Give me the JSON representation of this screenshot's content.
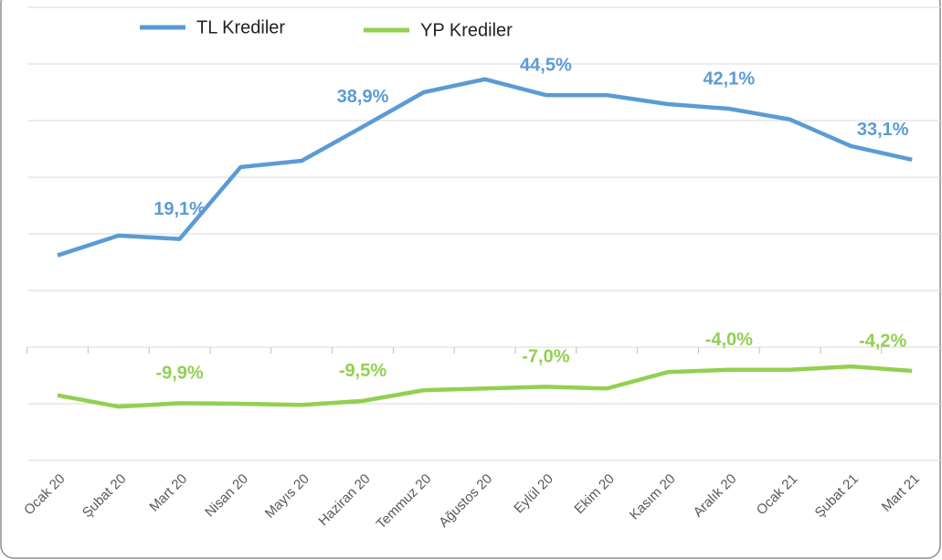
{
  "chart_data": {
    "type": "line",
    "categories": [
      "Ocak 20",
      "Şubat 20",
      "Mart 20",
      "Nisan 20",
      "Mayıs 20",
      "Haziran 20",
      "Temmuz 20",
      "Ağustos 20",
      "Eylül 20",
      "Ekim 20",
      "Kasım 20",
      "Aralık 20",
      "Ocak 21",
      "Şubat 21",
      "Mart 21"
    ],
    "series": [
      {
        "name": "TL Krediler",
        "color": "#5b9bd5",
        "values": [
          16.2,
          19.7,
          19.1,
          31.8,
          32.9,
          38.9,
          45.0,
          47.3,
          44.5,
          44.5,
          42.9,
          42.1,
          40.2,
          35.5,
          33.1
        ],
        "value_labels": [
          null,
          null,
          "19,1%",
          null,
          null,
          "38,9%",
          null,
          null,
          "44,5%",
          null,
          null,
          "42,1%",
          null,
          null,
          "33,1%"
        ]
      },
      {
        "name": "YP Krediler",
        "color": "#92d050",
        "values": [
          -8.5,
          -10.5,
          -9.9,
          -10.0,
          -10.2,
          -9.5,
          -7.6,
          -7.3,
          -7.0,
          -7.3,
          -4.4,
          -4.0,
          -4.0,
          -3.4,
          -4.2
        ],
        "value_labels": [
          null,
          null,
          "-9,9%",
          null,
          null,
          "-9,5%",
          null,
          null,
          "-7,0%",
          null,
          null,
          "-4,0%",
          null,
          null,
          "-4,2%"
        ]
      }
    ],
    "ylim": [
      -20,
      60
    ],
    "yticks": [
      -20,
      -10,
      0,
      10,
      20,
      30,
      40,
      50,
      60
    ],
    "grid": true
  }
}
